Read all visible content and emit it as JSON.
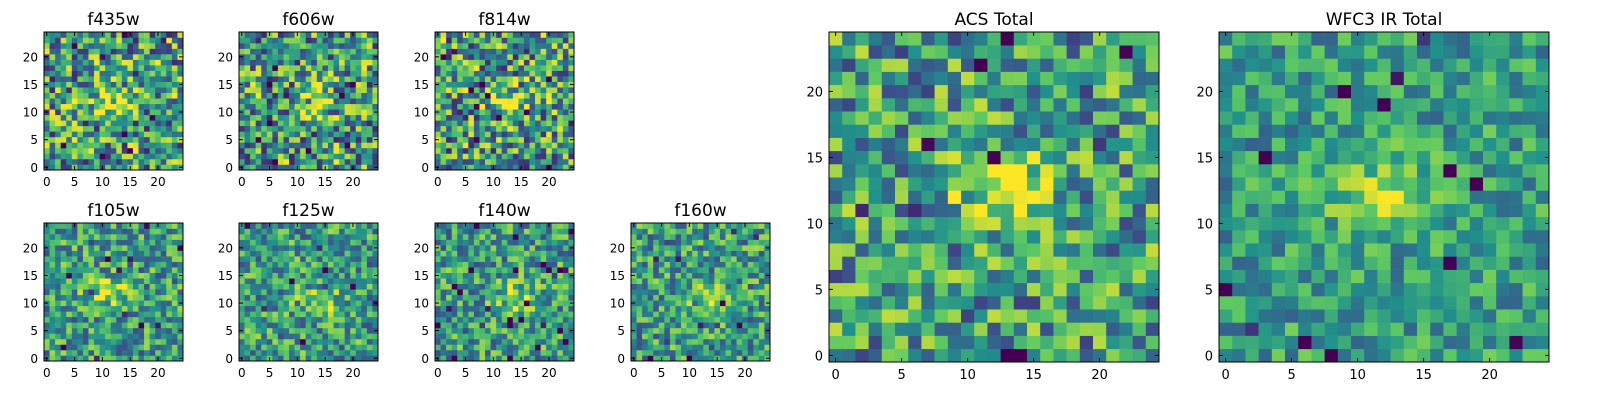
{
  "colormap": [
    "#440154",
    "#3b528b",
    "#21918c",
    "#5ec962",
    "#fde725"
  ],
  "chart_data": [
    {
      "type": "heatmap",
      "title": "f435w",
      "grid": 25,
      "xticks": [
        0,
        5,
        10,
        15,
        20
      ],
      "yticks": [
        0,
        5,
        10,
        15,
        20
      ],
      "source_center": [
        12,
        12
      ],
      "source_strength": 0.35,
      "noise": 0.55,
      "seed": 11
    },
    {
      "type": "heatmap",
      "title": "f606w",
      "grid": 25,
      "xticks": [
        0,
        5,
        10,
        15,
        20
      ],
      "yticks": [
        0,
        5,
        10,
        15,
        20
      ],
      "source_center": [
        13,
        12
      ],
      "source_strength": 0.35,
      "noise": 0.55,
      "seed": 23
    },
    {
      "type": "heatmap",
      "title": "f814w",
      "grid": 25,
      "xticks": [
        0,
        5,
        10,
        15,
        20
      ],
      "yticks": [
        0,
        5,
        10,
        15,
        20
      ],
      "source_center": [
        13,
        12
      ],
      "source_strength": 0.35,
      "noise": 0.55,
      "seed": 37
    },
    {
      "type": "heatmap",
      "title": "f105w",
      "grid": 25,
      "xticks": [
        0,
        5,
        10,
        15,
        20
      ],
      "yticks": [
        0,
        5,
        10,
        15,
        20
      ],
      "source_center": [
        11,
        12
      ],
      "source_strength": 0.3,
      "noise": 0.4,
      "seed": 41
    },
    {
      "type": "heatmap",
      "title": "f125w",
      "grid": 25,
      "xticks": [
        0,
        5,
        10,
        15,
        20
      ],
      "yticks": [
        0,
        5,
        10,
        15,
        20
      ],
      "source_center": [
        14,
        10
      ],
      "source_strength": 0.3,
      "noise": 0.4,
      "seed": 53
    },
    {
      "type": "heatmap",
      "title": "f140w",
      "grid": 25,
      "xticks": [
        0,
        5,
        10,
        15,
        20
      ],
      "yticks": [
        0,
        5,
        10,
        15,
        20
      ],
      "source_center": [
        14,
        11
      ],
      "source_strength": 0.3,
      "noise": 0.4,
      "seed": 67
    },
    {
      "type": "heatmap",
      "title": "f160w",
      "grid": 25,
      "xticks": [
        0,
        5,
        10,
        15,
        20
      ],
      "yticks": [
        0,
        5,
        10,
        15,
        20
      ],
      "source_center": [
        13,
        11
      ],
      "source_strength": 0.3,
      "noise": 0.4,
      "seed": 79
    },
    {
      "type": "heatmap",
      "title": "ACS Total",
      "grid": 25,
      "xticks": [
        0,
        5,
        10,
        15,
        20
      ],
      "yticks": [
        0,
        5,
        10,
        15,
        20
      ],
      "source_center": [
        13,
        12
      ],
      "source_strength": 0.45,
      "noise": 0.45,
      "seed": 97
    },
    {
      "type": "heatmap",
      "title": "WFC3 IR Total",
      "grid": 25,
      "xticks": [
        0,
        5,
        10,
        15,
        20
      ],
      "yticks": [
        0,
        5,
        10,
        15,
        20
      ],
      "source_center": [
        12,
        12
      ],
      "source_strength": 0.4,
      "noise": 0.3,
      "seed": 113
    }
  ]
}
